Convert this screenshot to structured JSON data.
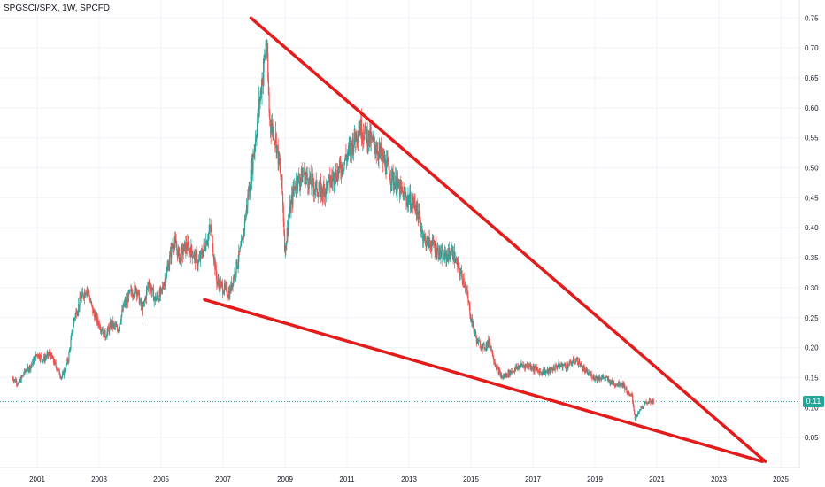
{
  "header": {
    "title": "SPGSCI/SPX, 1W, SPCFD"
  },
  "price_axis": {
    "last_price_label": "0.11"
  },
  "colors": {
    "up": "#26a69a",
    "down": "#ef5350",
    "trendline": "#e31b1b",
    "last_price_line": "#26a69a",
    "grid": "#f0f3fa",
    "axis_text": "#131722"
  },
  "chart_data": {
    "type": "line",
    "title": "SPGSCI/SPX, 1W, SPCFD",
    "xlabel": "",
    "ylabel": "",
    "x_ticks": [
      "2001",
      "2003",
      "2005",
      "2007",
      "2009",
      "2011",
      "2013",
      "2015",
      "2017",
      "2019",
      "2021",
      "2023",
      "2025"
    ],
    "y_ticks": [
      "0.05",
      "0.10",
      "0.15",
      "0.20",
      "0.25",
      "0.30",
      "0.35",
      "0.40",
      "0.45",
      "0.50",
      "0.55",
      "0.60",
      "0.65",
      "0.70",
      "0.75"
    ],
    "xlim": [
      1999.8,
      2025.6
    ],
    "ylim": [
      0.0,
      0.78
    ],
    "grid": true,
    "series": [
      {
        "x": [
          2000.2,
          2000.4,
          2000.6,
          2000.8,
          2001.0,
          2001.2,
          2001.4,
          2001.6,
          2001.8,
          2002.0,
          2002.2,
          2002.4,
          2002.6,
          2002.8,
          2003.0,
          2003.2,
          2003.4,
          2003.6,
          2003.8,
          2004.0,
          2004.2,
          2004.4,
          2004.6,
          2004.8,
          2005.0,
          2005.2,
          2005.4,
          2005.6,
          2005.8,
          2006.0,
          2006.2,
          2006.4,
          2006.6,
          2006.8,
          2007.0,
          2007.2,
          2007.4,
          2007.6,
          2007.8,
          2008.0,
          2008.2,
          2008.4,
          2008.5,
          2008.7,
          2008.9,
          2009.0,
          2009.1,
          2009.3,
          2009.6,
          2009.9,
          2010.2,
          2010.5,
          2010.8,
          2011.1,
          2011.4,
          2011.7,
          2012.0,
          2012.3,
          2012.6,
          2012.9,
          2013.2,
          2013.5,
          2013.8,
          2014.1,
          2014.4,
          2014.6,
          2014.8,
          2015.0,
          2015.2,
          2015.4,
          2015.6,
          2015.8,
          2016.0,
          2016.3,
          2016.6,
          2016.9,
          2017.2,
          2017.5,
          2017.8,
          2018.1,
          2018.4,
          2018.7,
          2019.0,
          2019.3,
          2019.6,
          2019.9,
          2020.1,
          2020.2,
          2020.3,
          2020.5,
          2020.7,
          2020.9
        ],
        "values": [
          0.15,
          0.14,
          0.16,
          0.17,
          0.19,
          0.18,
          0.19,
          0.17,
          0.15,
          0.18,
          0.25,
          0.28,
          0.3,
          0.26,
          0.24,
          0.22,
          0.24,
          0.23,
          0.27,
          0.29,
          0.3,
          0.26,
          0.31,
          0.28,
          0.29,
          0.33,
          0.38,
          0.35,
          0.37,
          0.36,
          0.34,
          0.37,
          0.4,
          0.31,
          0.3,
          0.29,
          0.33,
          0.37,
          0.45,
          0.53,
          0.62,
          0.71,
          0.58,
          0.55,
          0.47,
          0.36,
          0.41,
          0.47,
          0.49,
          0.47,
          0.46,
          0.48,
          0.5,
          0.53,
          0.57,
          0.55,
          0.53,
          0.5,
          0.47,
          0.45,
          0.44,
          0.38,
          0.37,
          0.35,
          0.36,
          0.33,
          0.31,
          0.25,
          0.21,
          0.2,
          0.21,
          0.17,
          0.15,
          0.16,
          0.17,
          0.17,
          0.16,
          0.16,
          0.17,
          0.17,
          0.18,
          0.16,
          0.15,
          0.15,
          0.14,
          0.14,
          0.12,
          0.12,
          0.08,
          0.1,
          0.11,
          0.11
        ]
      }
    ],
    "trendlines": [
      {
        "name": "upper",
        "x": [
          2007.9,
          2024.5
        ],
        "y": [
          0.75,
          0.01
        ]
      },
      {
        "name": "lower",
        "x": [
          2006.4,
          2024.4
        ],
        "y": [
          0.28,
          0.01
        ]
      }
    ],
    "last_value": 0.11
  }
}
